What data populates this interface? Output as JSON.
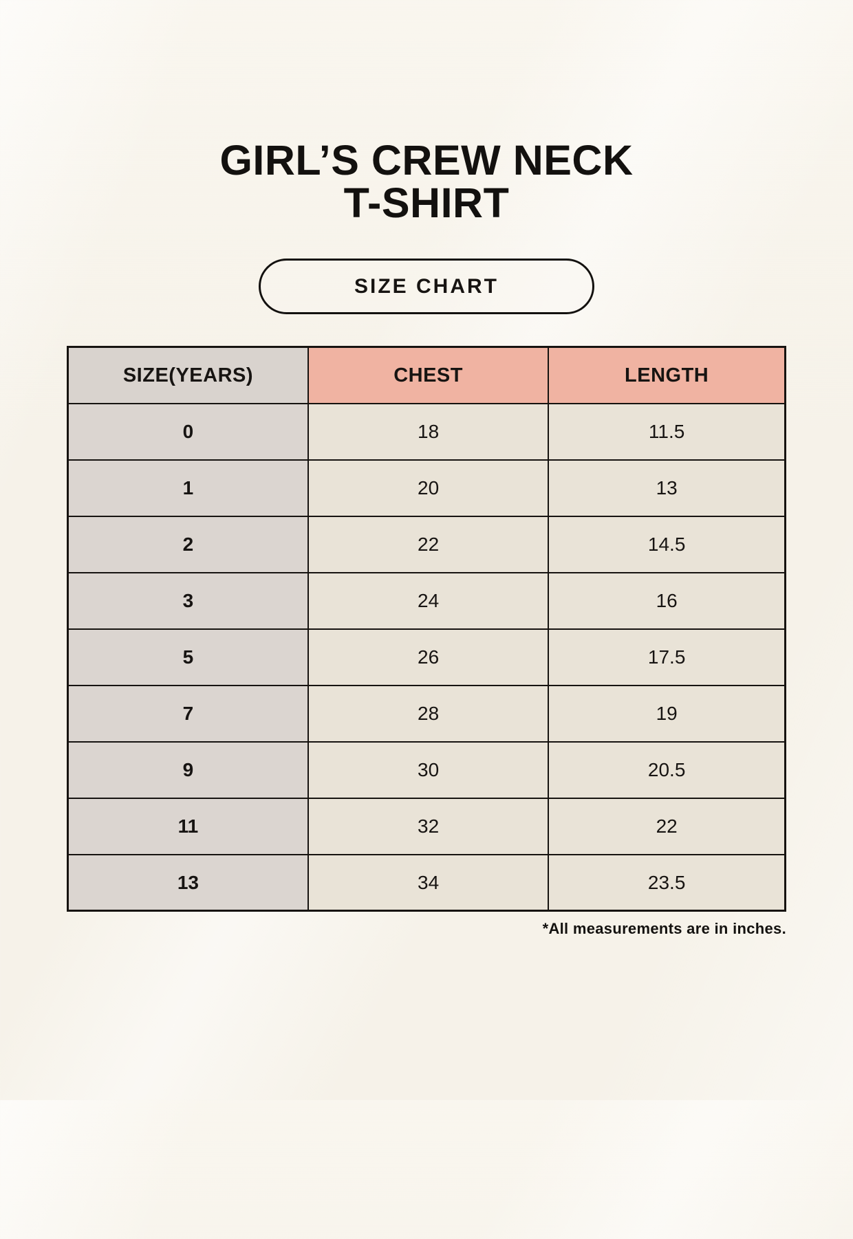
{
  "page": {
    "title_line1": "GIRL’S CREW NECK",
    "title_line2": "T-SHIRT",
    "badge_label": "SIZE CHART",
    "footnote": "*All measurements are in inches.",
    "colors": {
      "background": "#f6f2e9",
      "header_label_bg": "#d9d3ce",
      "header_accent_bg": "#f0b3a2",
      "row_label_bg": "#dbd5d0",
      "cell_bg": "#e9e3d7",
      "border": "#161310",
      "text": "#13110f"
    }
  },
  "table": {
    "headers": [
      "SIZE(YEARS)",
      "CHEST",
      "LENGTH"
    ],
    "rows": [
      [
        "0",
        "18",
        "11.5"
      ],
      [
        "1",
        "20",
        "13"
      ],
      [
        "2",
        "22",
        "14.5"
      ],
      [
        "3",
        "24",
        "16"
      ],
      [
        "5",
        "26",
        "17.5"
      ],
      [
        "7",
        "28",
        "19"
      ],
      [
        "9",
        "30",
        "20.5"
      ],
      [
        "11",
        "32",
        "22"
      ],
      [
        "13",
        "34",
        "23.5"
      ]
    ]
  },
  "chart_data": {
    "type": "table",
    "title": "GIRL’S CREW NECK T-SHIRT",
    "subtitle": "SIZE CHART",
    "columns": [
      "SIZE(YEARS)",
      "CHEST",
      "LENGTH"
    ],
    "rows": [
      {
        "size_years": "0",
        "chest": 18,
        "length": 11.5
      },
      {
        "size_years": "1",
        "chest": 20,
        "length": 13
      },
      {
        "size_years": "2",
        "chest": 22,
        "length": 14.5
      },
      {
        "size_years": "3",
        "chest": 24,
        "length": 16
      },
      {
        "size_years": "5",
        "chest": 26,
        "length": 17.5
      },
      {
        "size_years": "7",
        "chest": 28,
        "length": 19
      },
      {
        "size_years": "9",
        "chest": 30,
        "length": 20.5
      },
      {
        "size_years": "11",
        "chest": 32,
        "length": 22
      },
      {
        "size_years": "13",
        "chest": 34,
        "length": 23.5
      }
    ],
    "footnote": "*All measurements are in inches.",
    "units": "inches"
  }
}
